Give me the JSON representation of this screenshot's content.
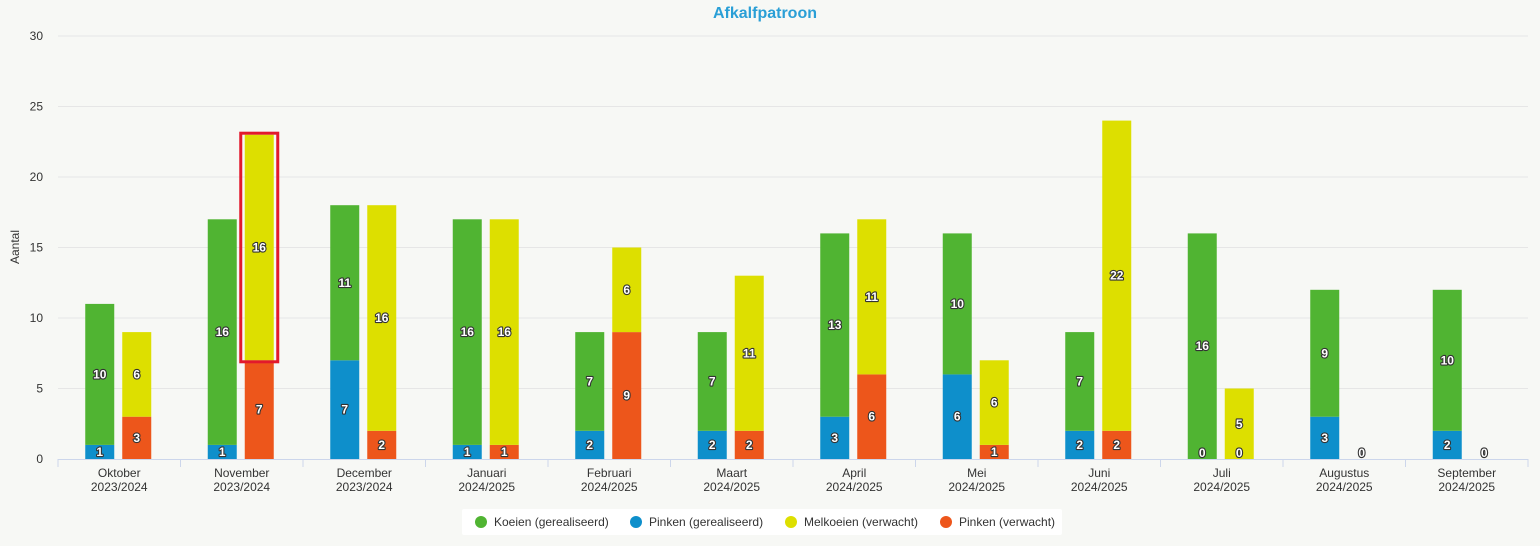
{
  "chart_data": {
    "type": "bar",
    "title": "Afkalfpatroon",
    "ylabel": "Aantal",
    "xlabel": "",
    "ylim": [
      0,
      30
    ],
    "yticks": [
      0,
      5,
      10,
      15,
      20,
      25,
      30
    ],
    "grid": true,
    "legend_position": "bottom-center",
    "categories": [
      {
        "month": "Oktober",
        "season": "2023/2024"
      },
      {
        "month": "November",
        "season": "2023/2024"
      },
      {
        "month": "December",
        "season": "2023/2024"
      },
      {
        "month": "Januari",
        "season": "2024/2025"
      },
      {
        "month": "Februari",
        "season": "2024/2025"
      },
      {
        "month": "Maart",
        "season": "2024/2025"
      },
      {
        "month": "April",
        "season": "2024/2025"
      },
      {
        "month": "Mei",
        "season": "2024/2025"
      },
      {
        "month": "Juni",
        "season": "2024/2025"
      },
      {
        "month": "Juli",
        "season": "2024/2025"
      },
      {
        "month": "Augustus",
        "season": "2024/2025"
      },
      {
        "month": "September",
        "season": "2024/2025"
      }
    ],
    "stacks": [
      {
        "name": "gerealiseerd",
        "series": [
          {
            "name": "Pinken (gerealiseerd)",
            "color": "#0e8fcb",
            "values": [
              1,
              1,
              7,
              1,
              2,
              2,
              3,
              6,
              2,
              0,
              3,
              2
            ]
          },
          {
            "name": "Koeien (gerealiseerd)",
            "color": "#50b432",
            "values": [
              10,
              16,
              11,
              16,
              7,
              7,
              13,
              10,
              7,
              16,
              9,
              10
            ]
          }
        ]
      },
      {
        "name": "verwacht",
        "series": [
          {
            "name": "Pinken (verwacht)",
            "color": "#ed561b",
            "values": [
              3,
              7,
              2,
              1,
              9,
              2,
              6,
              1,
              2,
              0,
              0,
              0
            ]
          },
          {
            "name": "Melkoeien (verwacht)",
            "color": "#dddf00",
            "values": [
              6,
              16,
              16,
              16,
              6,
              11,
              11,
              6,
              22,
              5,
              null,
              null
            ]
          }
        ]
      }
    ],
    "legend": [
      {
        "label": "Koeien (gerealiseerd)",
        "color": "#50b432"
      },
      {
        "label": "Pinken (gerealiseerd)",
        "color": "#0e8fcb"
      },
      {
        "label": "Melkoeien (verwacht)",
        "color": "#dddf00"
      },
      {
        "label": "Pinken (verwacht)",
        "color": "#ed561b"
      }
    ],
    "highlight": {
      "category_index": 1,
      "stack": "verwacht",
      "series": "Melkoeien (verwacht)",
      "color": "#e2192c"
    }
  }
}
